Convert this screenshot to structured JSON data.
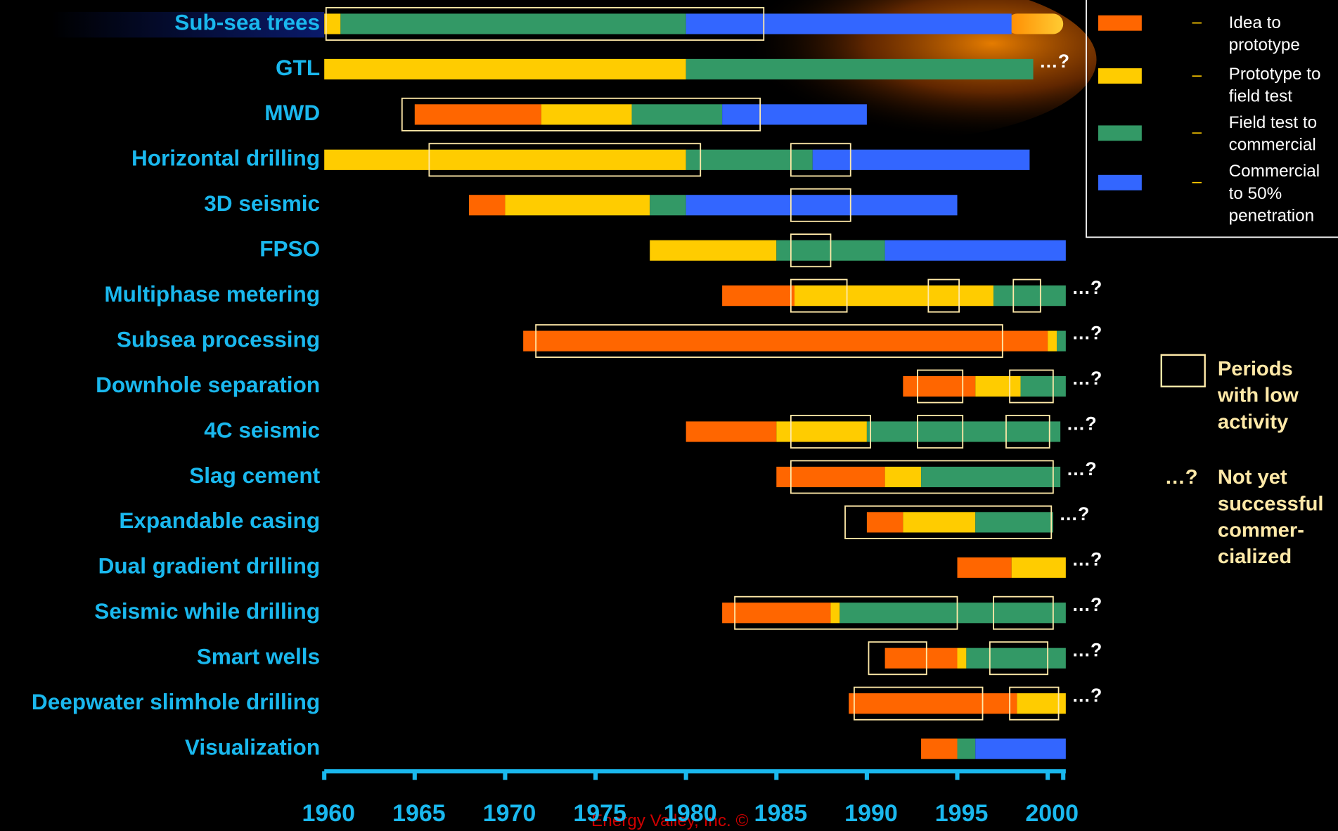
{
  "chart_data": {
    "type": "timeline",
    "categories": [
      "Sub-sea trees",
      "GTL",
      "MWD",
      "Horizontal drilling",
      "3D seismic",
      "FPSO",
      "Multiphase metering",
      "Subsea processing",
      "Downhole separation",
      "4C seismic",
      "Slag cement",
      "Expandable casing",
      "Dual gradient drilling",
      "Seismic while drilling",
      "Smart wells",
      "Deepwater slimhole drilling",
      "Visualization"
    ],
    "series": [
      {
        "name": "Idea to prototype",
        "color": "#ff6600",
        "values": [
          null,
          null,
          [
            1965,
            1972
          ],
          null,
          [
            1968,
            1970
          ],
          null,
          [
            1982,
            1986
          ],
          [
            1971,
            2000
          ],
          [
            1992,
            1996
          ],
          [
            1980,
            1985
          ],
          [
            1985,
            1991
          ],
          [
            1990,
            1992
          ],
          [
            1995,
            1998
          ],
          [
            1982,
            1988
          ],
          [
            1991,
            1995
          ],
          [
            1989,
            1998.3
          ],
          [
            1993,
            1995
          ]
        ]
      },
      {
        "name": "Prototype to field test",
        "color": "#ffcc00",
        "values": [
          [
            1960,
            1960.9
          ],
          [
            1960,
            1980
          ],
          [
            1972,
            1977
          ],
          [
            1960,
            1980
          ],
          [
            1970,
            1978
          ],
          [
            1978,
            1985
          ],
          [
            1986,
            1997
          ],
          [
            2000,
            2000.5
          ],
          [
            1996,
            1998.5
          ],
          [
            1985,
            1990
          ],
          [
            1991,
            1993
          ],
          [
            1992,
            1996
          ],
          [
            1998,
            2001
          ],
          [
            1988,
            1988.5
          ],
          [
            1995,
            1995.5
          ],
          [
            1998.3,
            2001
          ],
          null
        ]
      },
      {
        "name": "Field test to commercial",
        "color": "#339966",
        "values": [
          [
            1960.9,
            1980
          ],
          [
            1980,
            1999.2
          ],
          [
            1977,
            1982
          ],
          [
            1980,
            1987
          ],
          [
            1978,
            1980
          ],
          [
            1985,
            1991
          ],
          [
            1997,
            2001
          ],
          [
            2000.5,
            2001
          ],
          [
            1998.5,
            2001
          ],
          [
            1990,
            2000.7
          ],
          [
            1993,
            2000.7
          ],
          [
            1996,
            2000.3
          ],
          null,
          [
            1988.5,
            2001
          ],
          [
            1995.5,
            2001
          ],
          null,
          [
            1995,
            1996
          ]
        ]
      },
      {
        "name": "Commercial to 50% penetration",
        "color": "#3366ff",
        "values": [
          [
            1980,
            1998
          ],
          null,
          [
            1982,
            1990
          ],
          [
            1987,
            1999
          ],
          [
            1980,
            1995
          ],
          [
            1991,
            2001
          ],
          null,
          null,
          null,
          null,
          null,
          null,
          null,
          null,
          null,
          null,
          [
            1996,
            2001
          ]
        ]
      }
    ],
    "end_labels": [
      null,
      "…?",
      null,
      null,
      null,
      null,
      "…?",
      "…?",
      "…?",
      "…?",
      "…?",
      "…?",
      "…?",
      "…?",
      "…?",
      "…?",
      null
    ],
    "low_activity": [
      [
        [
          1960.1,
          1984.3
        ]
      ],
      [],
      [
        [
          1964.3,
          1984.1
        ]
      ],
      [
        [
          1965.8,
          1980.8
        ],
        [
          1985.8,
          1989.1
        ]
      ],
      [
        [
          1985.8,
          1989.1
        ]
      ],
      [
        [
          1985.8,
          1988
        ]
      ],
      [
        [
          1985.8,
          1988.9
        ],
        [
          1993.4,
          1995.1
        ],
        [
          1998.1,
          1999.6
        ]
      ],
      [
        [
          1971.7,
          1997.5
        ]
      ],
      [
        [
          1992.8,
          1995.3
        ],
        [
          1997.9,
          2000.3
        ]
      ],
      [
        [
          1985.8,
          1990.2
        ],
        [
          1992.8,
          1995.3
        ],
        [
          1997.7,
          2000.1
        ]
      ],
      [
        [
          1985.8,
          2000.3
        ]
      ],
      [
        [
          1988.8,
          2000.2
        ]
      ],
      [],
      [
        [
          1982.7,
          1995
        ],
        [
          1997,
          2000.3
        ]
      ],
      [
        [
          1990.1,
          1993.3
        ],
        [
          1996.8,
          2000
        ]
      ],
      [
        [
          1989.3,
          1996.4
        ],
        [
          1997.9,
          2000.6
        ]
      ],
      []
    ],
    "low_activity_label": "Periods with low activity",
    "note_marker": "…?",
    "note_label": "Not yet successful commer-cialized",
    "xlim": [
      1960,
      2001
    ],
    "xticks": [
      1960,
      1965,
      1970,
      1975,
      1980,
      1985,
      1990,
      1995,
      2000
    ],
    "footer": "Energy Valley, Inc. ©"
  }
}
